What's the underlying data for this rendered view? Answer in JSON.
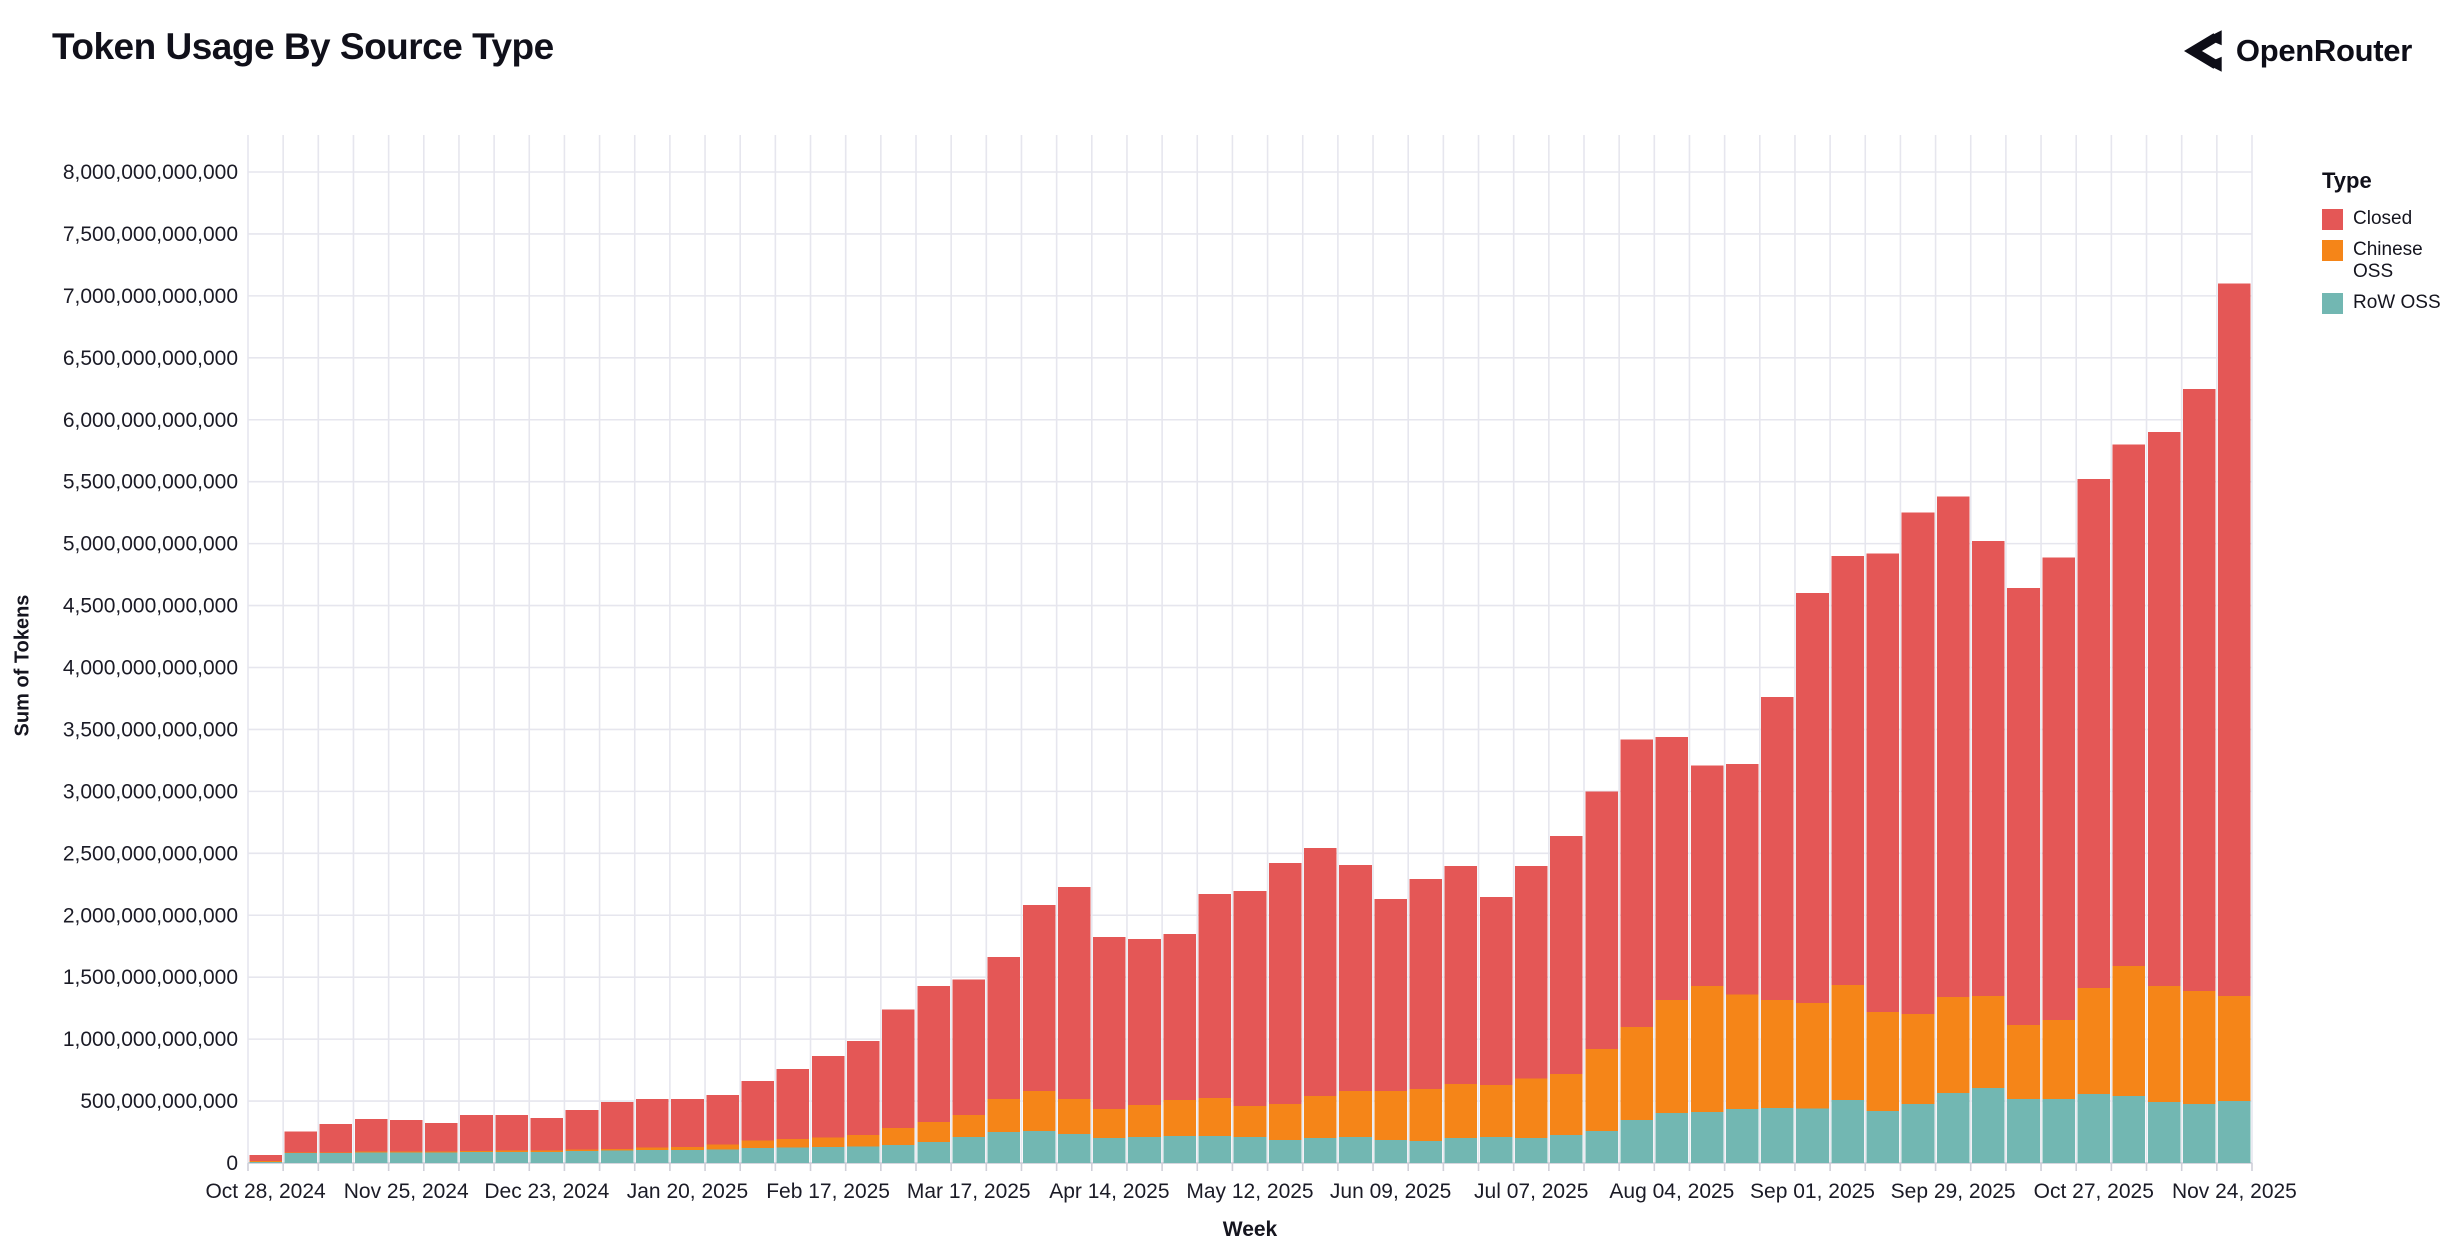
{
  "header": {
    "title": "Token Usage By Source Type",
    "brand": "OpenRouter"
  },
  "legend": {
    "title": "Type"
  },
  "axes": {
    "x_title": "Week",
    "y_title": "Sum of Tokens"
  },
  "chart_data": {
    "type": "bar",
    "stacked": true,
    "title": "Token Usage By Source Type",
    "xlabel": "Week",
    "ylabel": "Sum of Tokens",
    "ylim": [
      0,
      8000000000000
    ],
    "y_tick_step": 500000000000,
    "x_tick_every": 4,
    "grid": true,
    "legend_position": "right",
    "value_multiplier": 1000000000,
    "stack_order_bottom_to_top": [
      "RoW OSS",
      "Chinese OSS",
      "Closed"
    ],
    "categories": [
      "Oct 28, 2024",
      "Nov 04, 2024",
      "Nov 11, 2024",
      "Nov 18, 2024",
      "Nov 25, 2024",
      "Dec 02, 2024",
      "Dec 09, 2024",
      "Dec 16, 2024",
      "Dec 23, 2024",
      "Dec 30, 2024",
      "Jan 06, 2025",
      "Jan 13, 2025",
      "Jan 20, 2025",
      "Jan 27, 2025",
      "Feb 03, 2025",
      "Feb 10, 2025",
      "Feb 17, 2025",
      "Feb 24, 2025",
      "Mar 03, 2025",
      "Mar 10, 2025",
      "Mar 17, 2025",
      "Mar 24, 2025",
      "Mar 31, 2025",
      "Apr 07, 2025",
      "Apr 14, 2025",
      "Apr 21, 2025",
      "Apr 28, 2025",
      "May 05, 2025",
      "May 12, 2025",
      "May 19, 2025",
      "May 26, 2025",
      "Jun 02, 2025",
      "Jun 09, 2025",
      "Jun 16, 2025",
      "Jun 23, 2025",
      "Jun 30, 2025",
      "Jul 07, 2025",
      "Jul 14, 2025",
      "Jul 21, 2025",
      "Jul 28, 2025",
      "Aug 04, 2025",
      "Aug 11, 2025",
      "Aug 18, 2025",
      "Aug 25, 2025",
      "Sep 01, 2025",
      "Sep 08, 2025",
      "Sep 15, 2025",
      "Sep 22, 2025",
      "Sep 29, 2025",
      "Oct 06, 2025",
      "Oct 13, 2025",
      "Oct 20, 2025",
      "Oct 27, 2025",
      "Nov 03, 2025",
      "Nov 10, 2025",
      "Nov 17, 2025",
      "Nov 24, 2025"
    ],
    "series": [
      {
        "name": "Closed",
        "color": "#e45756",
        "values": [
          50,
          170,
          229,
          264,
          256,
          230,
          290,
          288,
          264,
          321,
          378,
          392,
          387,
          399,
          482,
          565,
          660,
          760,
          957,
          1099,
          1092,
          1146,
          1500,
          1711,
          1388,
          1340,
          1339,
          1646,
          1735,
          1944,
          2001,
          1823,
          1549,
          1694,
          1759,
          1517,
          1715,
          1920,
          2080,
          2322,
          2125,
          1780,
          1860,
          2443,
          3307,
          3462,
          3700,
          4046,
          4039,
          3671,
          3525,
          3735,
          4106,
          4208,
          4470,
          4860,
          5751
        ]
      },
      {
        "name": "Chinese OSS",
        "color": "#f58518",
        "values": [
          5,
          5,
          6,
          6,
          6,
          8,
          8,
          10,
          10,
          12,
          15,
          20,
          25,
          40,
          60,
          70,
          75,
          90,
          138,
          161,
          178,
          267,
          324,
          283,
          234,
          258,
          291,
          307,
          250,
          291,
          339,
          372,
          396,
          420,
          436,
          420,
          480,
          493,
          662,
          751,
          911,
          1018,
          924,
          873,
          853,
          928,
          800,
          726,
          776,
          744,
          597,
          637,
          856,
          1052,
          936,
          912,
          847
        ]
      },
      {
        "name": "RoW OSS",
        "color": "#72b7b2",
        "values": [
          10,
          80,
          80,
          85,
          85,
          85,
          90,
          90,
          90,
          95,
          100,
          105,
          105,
          110,
          120,
          125,
          130,
          135,
          145,
          170,
          210,
          250,
          258,
          234,
          202,
          210,
          218,
          218,
          210,
          186,
          202,
          210,
          186,
          178,
          202,
          210,
          202,
          226,
          258,
          347,
          404,
          412,
          436,
          444,
          440,
          510,
          420,
          478,
          565,
          605,
          518,
          518,
          558,
          540,
          494,
          478,
          502
        ]
      }
    ]
  },
  "style": {
    "grid_color": "#e6e6ee",
    "axis_color": "#c9c9d4",
    "tick_color": "#cfcfd9",
    "text_color": "#1b1b26"
  }
}
